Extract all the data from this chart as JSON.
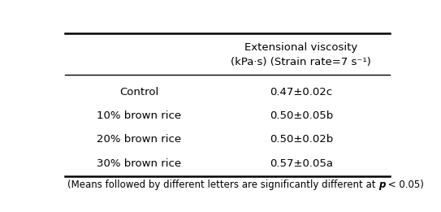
{
  "col_header_line1": "Extensional viscosity",
  "col_header_line2": "(kPa·s) (Strain rate=7 s⁻¹)",
  "rows": [
    {
      "label": "Control",
      "value": "0.47±0.02c"
    },
    {
      "label": "10% brown rice",
      "value": "0.50±0.05b"
    },
    {
      "label": "20% brown rice",
      "value": "0.50±0.02b"
    },
    {
      "label": "30% brown rice",
      "value": "0.57±0.05a"
    }
  ],
  "footnote_normal": "(Means followed by different letters are significantly different at ",
  "footnote_italic": "p",
  "footnote_end": " < 0.05)",
  "bg_color": "#ffffff",
  "text_color": "#000000",
  "line_color": "#000000",
  "font_size": 9.5,
  "header_font_size": 9.5,
  "footnote_font_size": 8.5,
  "fig_width": 5.43,
  "fig_height": 2.61
}
